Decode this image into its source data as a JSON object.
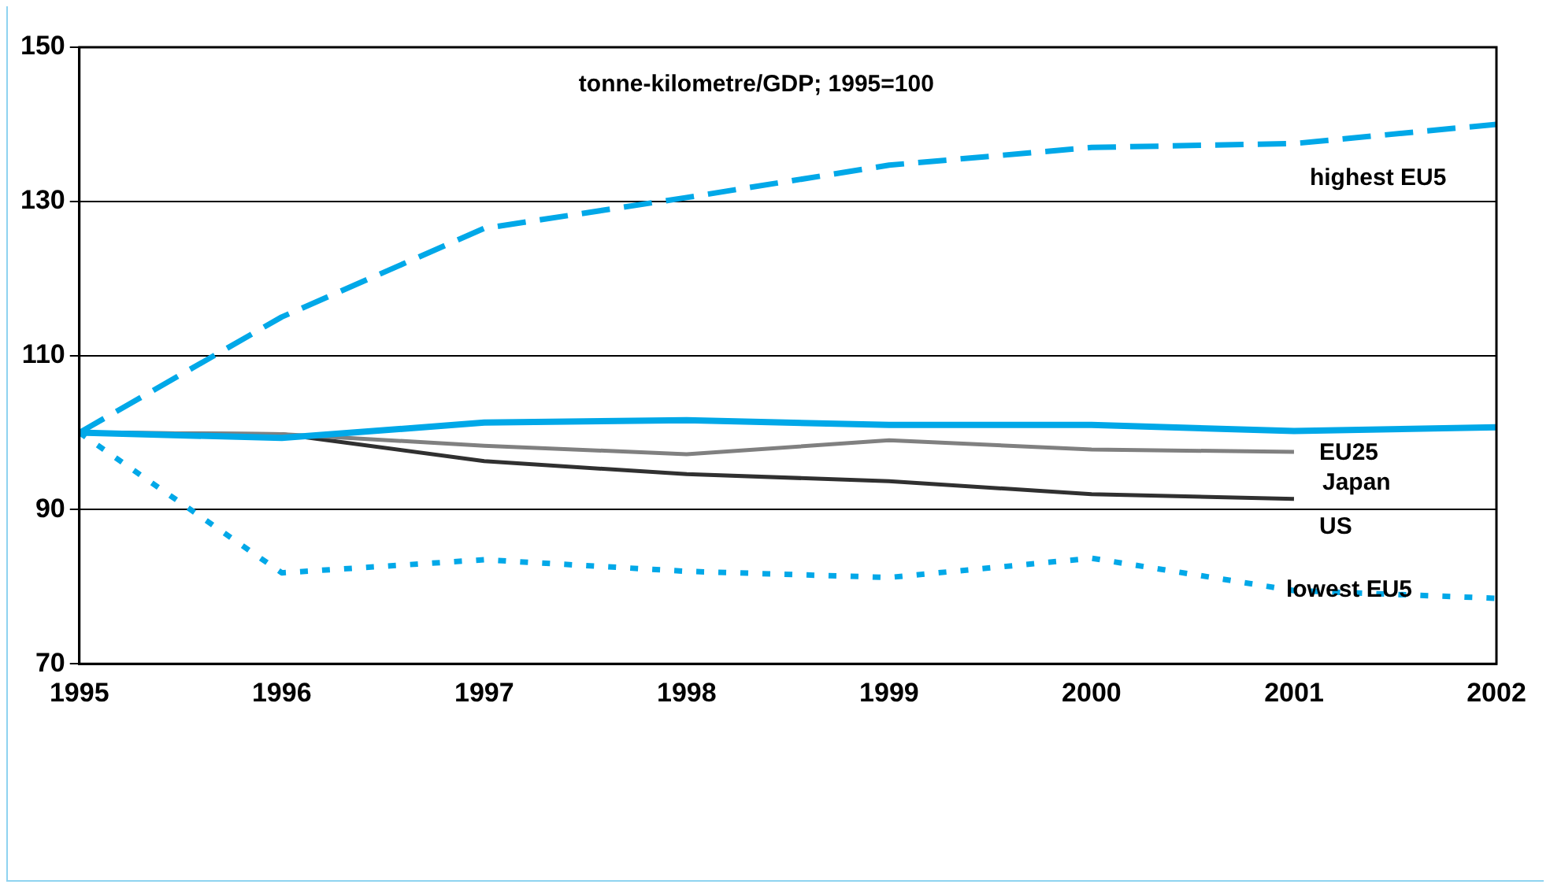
{
  "chart_data": {
    "type": "line",
    "title": "tonne-kilometre/GDP; 1995=100",
    "x": [
      1995,
      1996,
      1997,
      1998,
      1999,
      2000,
      2001,
      2002
    ],
    "series": [
      {
        "name": "highest EU5",
        "color": "#00a8e8",
        "line_style": "dashed",
        "values": [
          100,
          115,
          126.5,
          130.5,
          134.7,
          137,
          137.5,
          140
        ]
      },
      {
        "name": "EU25",
        "color": "#00a8e8",
        "line_style": "solid",
        "values": [
          100,
          99.3,
          101.3,
          101.6,
          101,
          101,
          100.2,
          100.7
        ]
      },
      {
        "name": "Japan",
        "color": "#808080",
        "line_style": "solid",
        "values": [
          100,
          99.8,
          98.3,
          97.2,
          99,
          97.8,
          97.5,
          null
        ]
      },
      {
        "name": "US",
        "color": "#303030",
        "line_style": "solid",
        "values": [
          100,
          99.8,
          96.3,
          94.6,
          93.7,
          92,
          91.4,
          null
        ]
      },
      {
        "name": "lowest EU5",
        "color": "#00a8e8",
        "line_style": "dotted",
        "values": [
          100,
          81.8,
          83.5,
          82,
          81.2,
          83.7,
          79.5,
          78.5
        ]
      }
    ],
    "xlim": [
      1995,
      2002
    ],
    "xticks": [
      1995,
      1996,
      1997,
      1998,
      1999,
      2000,
      2001,
      2002
    ],
    "ylim": [
      70,
      150
    ],
    "yticks": [
      70,
      90,
      110,
      130,
      150
    ],
    "grid": "y",
    "marker": "none",
    "legend": false
  }
}
